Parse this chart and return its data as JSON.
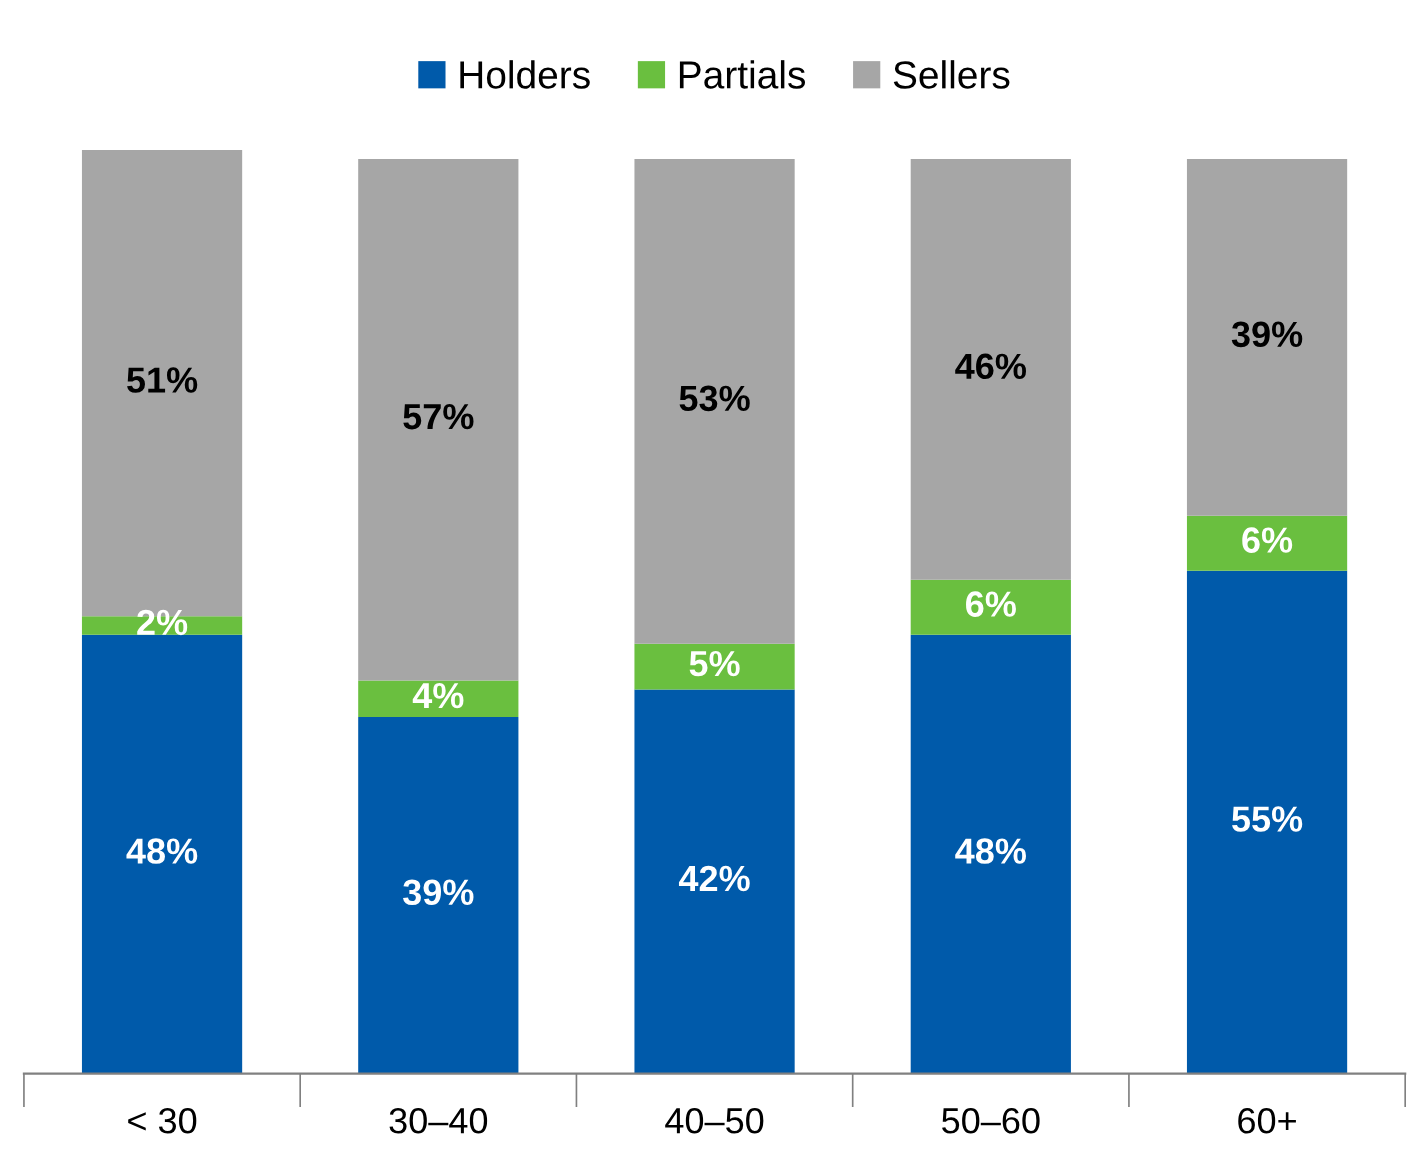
{
  "chart_data": {
    "type": "bar",
    "stacked": true,
    "legend": "top",
    "grid": false,
    "categories": [
      "< 30",
      "30–40",
      "40–50",
      "50–60",
      "60+"
    ],
    "series": [
      {
        "name": "Holders",
        "color": "#005aaa",
        "values": [
          48,
          39,
          42,
          48,
          55
        ],
        "value_labels": [
          "48%",
          "39%",
          "42%",
          "48%",
          "55%"
        ]
      },
      {
        "name": "Partials",
        "color": "#6abf3f",
        "values": [
          2,
          4,
          5,
          6,
          6
        ],
        "value_labels": [
          "2%",
          "4%",
          "5%",
          "6%",
          "6%"
        ]
      },
      {
        "name": "Sellers",
        "color": "#a6a6a6",
        "values": [
          51,
          57,
          53,
          46,
          39
        ],
        "value_labels": [
          "51%",
          "57%",
          "53%",
          "46%",
          "39%"
        ]
      }
    ]
  }
}
